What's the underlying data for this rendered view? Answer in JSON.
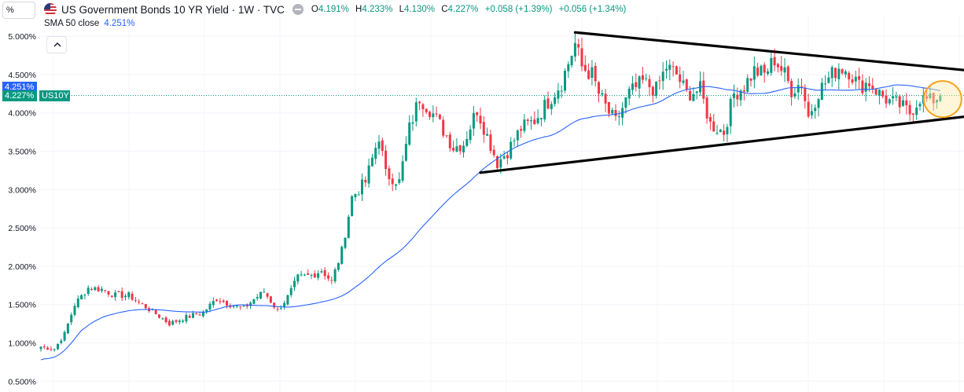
{
  "toolbar": {
    "scale_label": "%"
  },
  "header": {
    "title": "US Government Bonds 10 YR Yield · 1W · TVC",
    "ohlc": [
      {
        "label": "O",
        "value": "4.191%"
      },
      {
        "label": "H",
        "value": "4.233%"
      },
      {
        "label": "L",
        "value": "4.130%"
      },
      {
        "label": "C",
        "value": "4.227%"
      }
    ],
    "change": "+0.058 (+1.39%)",
    "change2": "+0.056 (+1.34%)"
  },
  "indicator": {
    "name": "SMA 50 close",
    "value": "4.251%"
  },
  "price_tags": {
    "sma": "4.251%",
    "last": "4.227%",
    "symbol": "US10Y"
  },
  "colors": {
    "up": "#089981",
    "down": "#f23645",
    "sma": "#2962ff",
    "trendline": "#000000",
    "highlight": "#f7a21b",
    "sma_tag": "#2962ff"
  },
  "chart_data": {
    "type": "candlestick",
    "title": "US Government Bonds 10 YR Yield",
    "interval": "1W",
    "ylim": [
      0.4,
      5.1
    ],
    "y_ticks": [
      "5.000%",
      "4.500%",
      "4.000%",
      "3.500%",
      "3.000%",
      "2.500%",
      "2.000%",
      "1.500%",
      "1.000%",
      "0.500%"
    ],
    "y_tick_values": [
      5.0,
      4.5,
      4.0,
      3.5,
      3.0,
      2.5,
      2.0,
      1.5,
      1.0,
      0.5
    ],
    "grid": true,
    "price_path": [
      [
        0,
        0.95
      ],
      [
        4,
        0.92
      ],
      [
        7,
        1.12
      ],
      [
        10,
        1.5
      ],
      [
        14,
        1.72
      ],
      [
        18,
        1.7
      ],
      [
        22,
        1.62
      ],
      [
        26,
        1.62
      ],
      [
        30,
        1.5
      ],
      [
        34,
        1.38
      ],
      [
        38,
        1.25
      ],
      [
        42,
        1.32
      ],
      [
        48,
        1.4
      ],
      [
        52,
        1.58
      ],
      [
        56,
        1.5
      ],
      [
        60,
        1.45
      ],
      [
        63,
        1.57
      ],
      [
        66,
        1.67
      ],
      [
        70,
        1.42
      ],
      [
        73,
        1.6
      ],
      [
        76,
        1.85
      ],
      [
        80,
        1.88
      ],
      [
        83,
        1.95
      ],
      [
        86,
        1.8
      ],
      [
        89,
        2.2
      ],
      [
        92,
        2.9
      ],
      [
        96,
        3.1
      ],
      [
        100,
        3.7
      ],
      [
        102,
        3.2
      ],
      [
        106,
        3.1
      ],
      [
        109,
        3.8
      ],
      [
        112,
        4.2
      ],
      [
        115,
        4.05
      ],
      [
        118,
        3.85
      ],
      [
        122,
        3.55
      ],
      [
        125,
        3.6
      ],
      [
        129,
        4.05
      ],
      [
        132,
        3.7
      ],
      [
        135,
        3.35
      ],
      [
        138,
        3.5
      ],
      [
        142,
        3.8
      ],
      [
        146,
        3.9
      ],
      [
        150,
        4.15
      ],
      [
        154,
        4.4
      ],
      [
        158,
        4.9
      ],
      [
        160,
        4.6
      ],
      [
        163,
        4.5
      ],
      [
        165,
        4.25
      ],
      [
        168,
        4.0
      ],
      [
        170,
        3.88
      ],
      [
        174,
        4.25
      ],
      [
        178,
        4.4
      ],
      [
        182,
        4.3
      ],
      [
        185,
        4.6
      ],
      [
        188,
        4.5
      ],
      [
        191,
        4.25
      ],
      [
        195,
        4.3
      ],
      [
        198,
        3.85
      ],
      [
        202,
        3.75
      ],
      [
        205,
        4.25
      ],
      [
        208,
        4.35
      ],
      [
        211,
        4.55
      ],
      [
        214,
        4.5
      ],
      [
        217,
        4.7
      ],
      [
        220,
        4.5
      ],
      [
        222,
        4.3
      ],
      [
        225,
        4.4
      ],
      [
        227,
        3.95
      ],
      [
        230,
        4.28
      ],
      [
        233,
        4.45
      ],
      [
        236,
        4.6
      ],
      [
        239,
        4.55
      ],
      [
        242,
        4.35
      ],
      [
        245,
        4.4
      ],
      [
        248,
        4.25
      ],
      [
        251,
        4.15
      ],
      [
        254,
        4.1
      ],
      [
        257,
        4.0
      ],
      [
        260,
        4.2
      ],
      [
        263,
        4.15
      ],
      [
        266,
        4.23
      ]
    ],
    "trendlines": [
      {
        "name": "upper-resistance",
        "from": {
          "x": 158,
          "y": 5.05
        },
        "to": {
          "x": 275,
          "y": 4.55
        }
      },
      {
        "name": "lower-support",
        "from": {
          "x": 130,
          "y": 3.22
        },
        "to": {
          "x": 277,
          "y": 3.97
        }
      }
    ],
    "highlight": {
      "name": "latest-price-highlight",
      "x": 266,
      "y": 4.2
    }
  }
}
